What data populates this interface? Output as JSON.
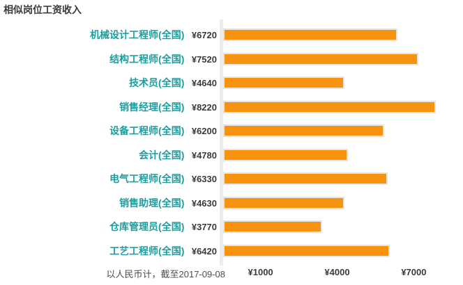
{
  "chart_data": {
    "type": "bar",
    "orientation": "horizontal",
    "title": "相似岗位工资收入",
    "footnote": "以人民币计，截至2017-09-08",
    "categories": [
      "机械设计工程师(全国)",
      "结构工程师(全国)",
      "技术员(全国)",
      "销售经理(全国)",
      "设备工程师(全国)",
      "会计(全国)",
      "电气工程师(全国)",
      "销售助理(全国)",
      "仓库管理员(全国)",
      "工艺工程师(全国)"
    ],
    "values": [
      6720,
      7520,
      4640,
      8220,
      6200,
      4780,
      6330,
      4630,
      3770,
      6420
    ],
    "rows": [
      {
        "label": "机械设计工程师(全国)",
        "value": 6720,
        "value_label": "¥6720"
      },
      {
        "label": "结构工程师(全国)",
        "value": 7520,
        "value_label": "¥7520"
      },
      {
        "label": "技术员(全国)",
        "value": 4640,
        "value_label": "¥4640"
      },
      {
        "label": "销售经理(全国)",
        "value": 8220,
        "value_label": "¥8220"
      },
      {
        "label": "设备工程师(全国)",
        "value": 6200,
        "value_label": "¥6200"
      },
      {
        "label": "会计(全国)",
        "value": 4780,
        "value_label": "¥4780"
      },
      {
        "label": "电气工程师(全国)",
        "value": 6330,
        "value_label": "¥6330"
      },
      {
        "label": "销售助理(全国)",
        "value": 4630,
        "value_label": "¥4630"
      },
      {
        "label": "仓库管理员(全国)",
        "value": 3770,
        "value_label": "¥3770"
      },
      {
        "label": "工艺工程师(全国)",
        "value": 6420,
        "value_label": "¥6420"
      }
    ],
    "x_ticks": [
      {
        "label": "¥1000",
        "value": 1000
      },
      {
        "label": "¥4000",
        "value": 4000
      },
      {
        "label": "¥7000",
        "value": 7000
      }
    ],
    "xlim": [
      0,
      9400
    ],
    "grid": false,
    "legend": false,
    "colors": {
      "bar": "#f7930e",
      "bar_border": "#e8e6e2",
      "category_label": "#1d9d9e",
      "value_text": "#3a3a3a",
      "axis_line": "#ededed",
      "tick_text": "#3a3a3a",
      "footnote_text": "#4d4d4d"
    }
  }
}
